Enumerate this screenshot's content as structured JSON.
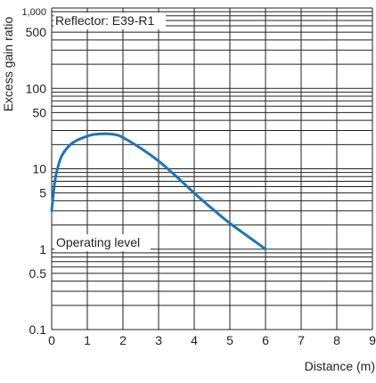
{
  "chart_data": {
    "type": "line",
    "xlabel": "Distance (m)",
    "ylabel": "Excess gain ratio",
    "x_ticks": [
      0,
      1,
      2,
      3,
      4,
      5,
      6,
      7,
      8,
      9
    ],
    "y_ticks": [
      {
        "value": 0.1,
        "label": "0.1"
      },
      {
        "value": 0.5,
        "label": "0.5"
      },
      {
        "value": 1,
        "label": "1"
      },
      {
        "value": 5,
        "label": "5"
      },
      {
        "value": 10,
        "label": "10"
      },
      {
        "value": 50,
        "label": "50"
      },
      {
        "value": 100,
        "label": "100"
      },
      {
        "value": 500,
        "label": "500"
      },
      {
        "value": 1000,
        "label": "1,000"
      }
    ],
    "xlim": [
      0,
      9
    ],
    "ylim": [
      0.1,
      1000
    ],
    "y_scale": "log",
    "grid": true,
    "annotations": [
      {
        "text": "Reflector: E39-R1",
        "position": "top-left"
      },
      {
        "text": "Operating level",
        "position": "near y = 1"
      }
    ],
    "series": [
      {
        "color": "#1c75bc",
        "x": [
          0,
          0.05,
          0.1,
          0.2,
          0.3,
          0.5,
          0.7,
          1.0,
          1.2,
          1.5,
          1.8,
          2.0,
          2.5,
          3.0,
          3.5,
          4.0,
          4.5,
          5.0,
          5.5,
          6.0
        ],
        "y": [
          3,
          5,
          7.5,
          11.5,
          15,
          19.5,
          22.5,
          25.5,
          26.8,
          27.3,
          26.5,
          24.5,
          18,
          12.5,
          8,
          5,
          3.2,
          2.1,
          1.45,
          1.0
        ]
      }
    ]
  },
  "colors": {
    "grid": "#222222",
    "curve": "#1c75bc"
  }
}
